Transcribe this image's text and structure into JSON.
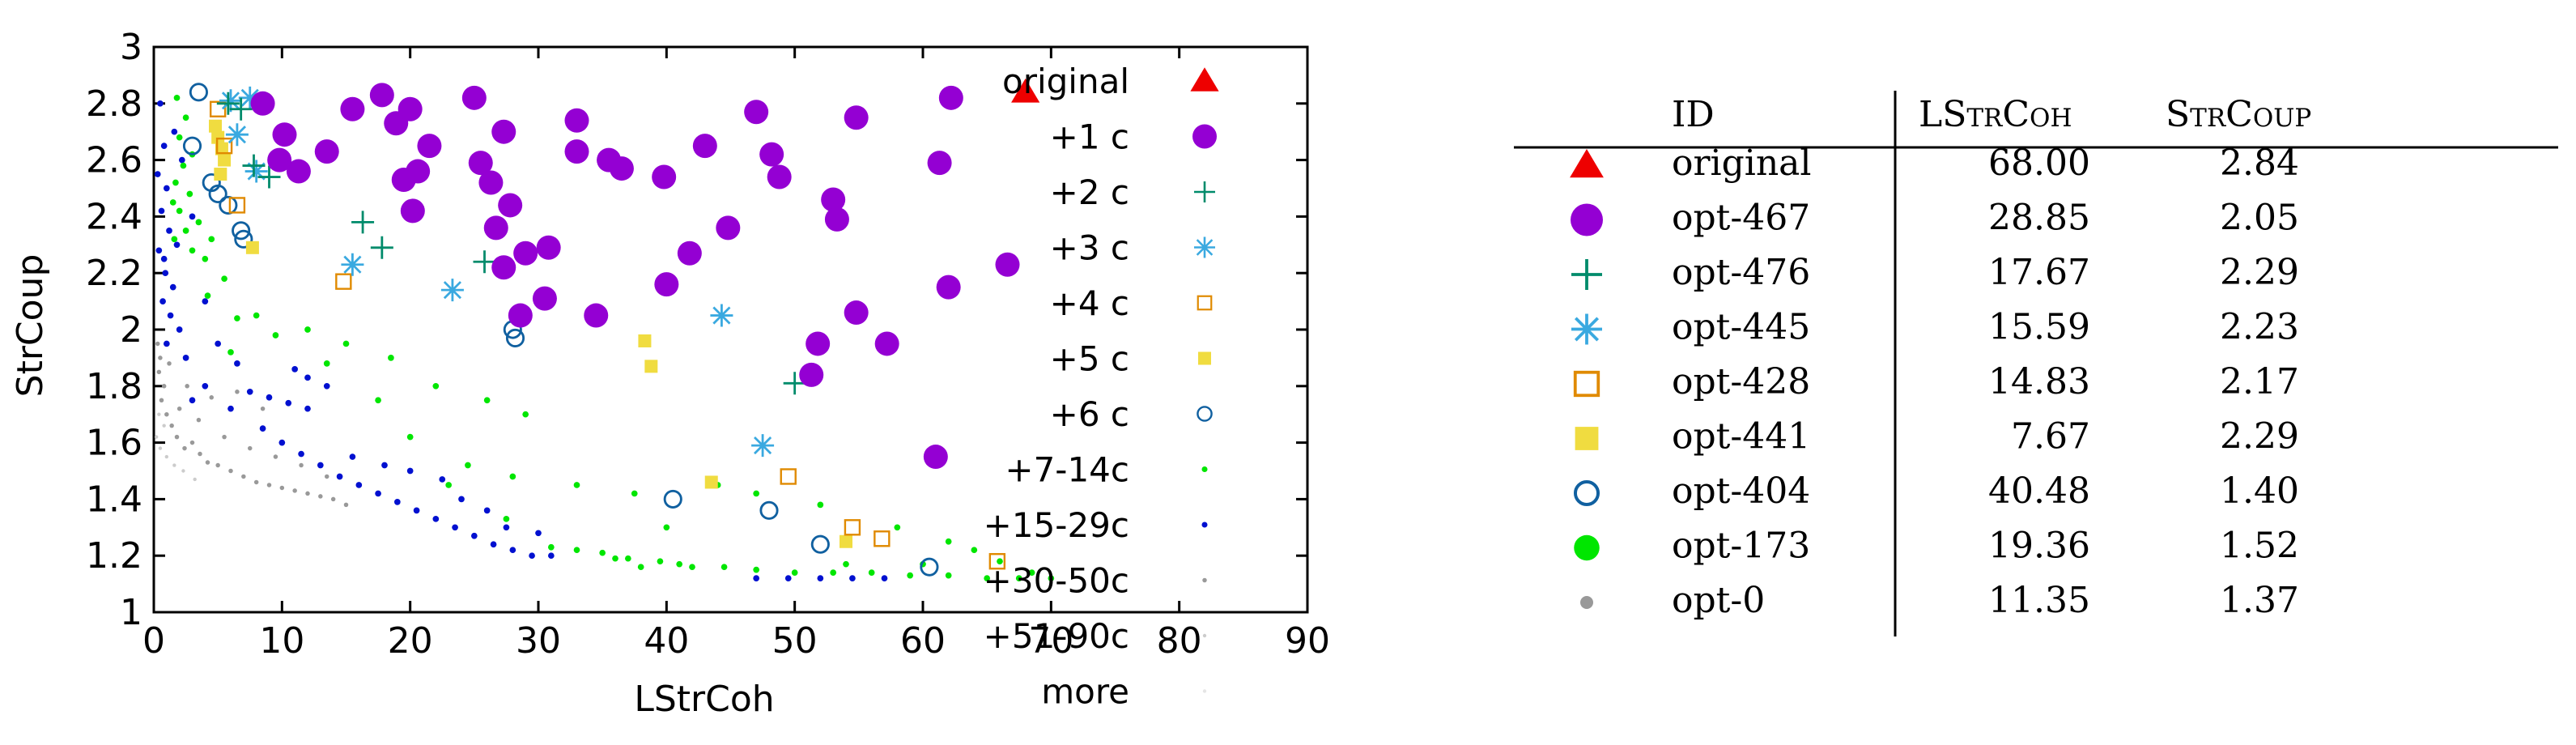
{
  "chart_data": {
    "type": "scatter",
    "title": "",
    "xlabel": "LStrCoh",
    "ylabel": "StrCoup",
    "xlim": [
      0,
      90
    ],
    "ylim": [
      1,
      3
    ],
    "x_ticks": [
      "0",
      "10",
      "20",
      "30",
      "40",
      "50",
      "60",
      "70",
      "80",
      "90"
    ],
    "y_ticks": [
      "1",
      "1.2",
      "1.4",
      "1.6",
      "1.8",
      "2",
      "2.2",
      "2.4",
      "2.6",
      "2.8",
      "3"
    ],
    "grid": false,
    "legend_position": "top-right inside",
    "series": [
      {
        "name": "original",
        "marker": "triangle",
        "color": "#ee0000",
        "points": [
          [
            68.0,
            2.84
          ]
        ]
      },
      {
        "name": "+1 c",
        "marker": "circle-filled",
        "color": "#9400d3",
        "points": [
          [
            8.5,
            2.8
          ],
          [
            10.2,
            2.69
          ],
          [
            9.8,
            2.6
          ],
          [
            11.3,
            2.56
          ],
          [
            13.5,
            2.63
          ],
          [
            15.5,
            2.78
          ],
          [
            17.8,
            2.83
          ],
          [
            18.9,
            2.73
          ],
          [
            20.0,
            2.78
          ],
          [
            21.5,
            2.65
          ],
          [
            19.5,
            2.53
          ],
          [
            20.6,
            2.56
          ],
          [
            20.2,
            2.42
          ],
          [
            25.0,
            2.82
          ],
          [
            25.5,
            2.59
          ],
          [
            26.3,
            2.52
          ],
          [
            27.3,
            2.7
          ],
          [
            27.8,
            2.44
          ],
          [
            26.7,
            2.36
          ],
          [
            27.3,
            2.22
          ],
          [
            29.0,
            2.27
          ],
          [
            30.8,
            2.29
          ],
          [
            30.5,
            2.11
          ],
          [
            28.6,
            2.05
          ],
          [
            33.0,
            2.74
          ],
          [
            33.0,
            2.63
          ],
          [
            35.5,
            2.6
          ],
          [
            36.5,
            2.57
          ],
          [
            39.8,
            2.54
          ],
          [
            43.0,
            2.65
          ],
          [
            41.8,
            2.27
          ],
          [
            40.0,
            2.16
          ],
          [
            44.8,
            2.36
          ],
          [
            47.0,
            2.77
          ],
          [
            48.2,
            2.62
          ],
          [
            48.8,
            2.54
          ],
          [
            53.0,
            2.46
          ],
          [
            53.3,
            2.39
          ],
          [
            54.8,
            2.75
          ],
          [
            54.8,
            2.06
          ],
          [
            51.8,
            1.95
          ],
          [
            51.3,
            1.84
          ],
          [
            57.2,
            1.95
          ],
          [
            62.2,
            2.82
          ],
          [
            61.3,
            2.59
          ],
          [
            62.0,
            2.15
          ],
          [
            66.6,
            2.23
          ],
          [
            61.0,
            1.55
          ],
          [
            34.5,
            2.05
          ]
        ]
      },
      {
        "name": "+2 c",
        "marker": "plus",
        "color": "#008b6b",
        "points": [
          [
            5.8,
            2.8
          ],
          [
            6.8,
            2.78
          ],
          [
            7.8,
            2.58
          ],
          [
            9.0,
            2.54
          ],
          [
            16.3,
            2.38
          ],
          [
            17.8,
            2.29
          ],
          [
            25.8,
            2.24
          ],
          [
            50.0,
            1.81
          ]
        ]
      },
      {
        "name": "+3 c",
        "marker": "asterisk",
        "color": "#3aa9e0",
        "points": [
          [
            6.0,
            2.81
          ],
          [
            6.5,
            2.69
          ],
          [
            7.5,
            2.82
          ],
          [
            8.0,
            2.56
          ],
          [
            15.5,
            2.23
          ],
          [
            23.3,
            2.14
          ],
          [
            44.3,
            2.05
          ],
          [
            47.5,
            1.59
          ]
        ]
      },
      {
        "name": "+4 c",
        "marker": "square-open",
        "color": "#e08a00",
        "points": [
          [
            5.0,
            2.78
          ],
          [
            5.5,
            2.65
          ],
          [
            6.5,
            2.44
          ],
          [
            14.8,
            2.17
          ],
          [
            49.5,
            1.48
          ],
          [
            54.5,
            1.3
          ],
          [
            56.8,
            1.26
          ],
          [
            65.8,
            1.18
          ]
        ]
      },
      {
        "name": "+5 c",
        "marker": "square-filled",
        "color": "#f0dc40",
        "points": [
          [
            4.8,
            2.72
          ],
          [
            5.0,
            2.68
          ],
          [
            5.3,
            2.64
          ],
          [
            5.5,
            2.6
          ],
          [
            5.2,
            2.55
          ],
          [
            7.7,
            2.29
          ],
          [
            38.3,
            1.96
          ],
          [
            38.8,
            1.87
          ],
          [
            43.5,
            1.46
          ],
          [
            54.0,
            1.25
          ]
        ]
      },
      {
        "name": "+6 c",
        "marker": "circle-open",
        "color": "#1060a0",
        "points": [
          [
            3.5,
            2.84
          ],
          [
            3.0,
            2.65
          ],
          [
            4.5,
            2.52
          ],
          [
            5.0,
            2.48
          ],
          [
            5.8,
            2.44
          ],
          [
            6.8,
            2.35
          ],
          [
            7.0,
            2.32
          ],
          [
            28.0,
            2.0
          ],
          [
            28.2,
            1.97
          ],
          [
            40.5,
            1.4
          ],
          [
            48.0,
            1.36
          ],
          [
            52.0,
            1.24
          ],
          [
            60.5,
            1.16
          ]
        ]
      },
      {
        "name": "+7-14c",
        "marker": "dot",
        "color": "#00e600",
        "points": [
          [
            1.8,
            2.82
          ],
          [
            2.5,
            2.75
          ],
          [
            2.0,
            2.68
          ],
          [
            3.0,
            2.62
          ],
          [
            2.3,
            2.58
          ],
          [
            1.7,
            2.52
          ],
          [
            2.8,
            2.48
          ],
          [
            1.5,
            2.45
          ],
          [
            2.0,
            2.42
          ],
          [
            3.5,
            2.38
          ],
          [
            2.5,
            2.35
          ],
          [
            1.6,
            2.32
          ],
          [
            3.0,
            2.28
          ],
          [
            4.5,
            2.32
          ],
          [
            4.0,
            2.25
          ],
          [
            5.5,
            2.18
          ],
          [
            4.2,
            2.12
          ],
          [
            6.5,
            2.04
          ],
          [
            8.0,
            2.05
          ],
          [
            12.0,
            2.0
          ],
          [
            15.0,
            1.95
          ],
          [
            18.5,
            1.9
          ],
          [
            22.0,
            1.8
          ],
          [
            26.0,
            1.75
          ],
          [
            29.0,
            1.7
          ],
          [
            17.5,
            1.75
          ],
          [
            20.0,
            1.62
          ],
          [
            24.5,
            1.52
          ],
          [
            28.0,
            1.48
          ],
          [
            33.0,
            1.45
          ],
          [
            37.5,
            1.42
          ],
          [
            44.0,
            1.45
          ],
          [
            47.0,
            1.42
          ],
          [
            52.0,
            1.38
          ],
          [
            58.0,
            1.3
          ],
          [
            62.0,
            1.25
          ],
          [
            64.0,
            1.22
          ],
          [
            66.0,
            1.18
          ],
          [
            68.5,
            1.14
          ],
          [
            31.0,
            1.23
          ],
          [
            33.0,
            1.22
          ],
          [
            35.0,
            1.21
          ],
          [
            37.0,
            1.19
          ],
          [
            39.5,
            1.18
          ],
          [
            42.0,
            1.16
          ],
          [
            44.5,
            1.16
          ],
          [
            47.0,
            1.15
          ],
          [
            50.0,
            1.14
          ],
          [
            53.0,
            1.14
          ],
          [
            56.0,
            1.14
          ],
          [
            59.0,
            1.13
          ],
          [
            62.0,
            1.13
          ],
          [
            65.0,
            1.12
          ],
          [
            67.5,
            1.12
          ],
          [
            70.0,
            1.12
          ],
          [
            54.0,
            1.17
          ],
          [
            60.0,
            1.17
          ],
          [
            38.0,
            1.16
          ],
          [
            41.0,
            1.17
          ],
          [
            36.0,
            1.19
          ],
          [
            40.0,
            1.3
          ],
          [
            27.5,
            1.33
          ],
          [
            23.0,
            1.45
          ],
          [
            13.5,
            1.88
          ],
          [
            9.5,
            1.98
          ],
          [
            6.0,
            1.92
          ]
        ]
      },
      {
        "name": "+15-29c",
        "marker": "dot",
        "color": "#0010d0",
        "points": [
          [
            0.5,
            2.8
          ],
          [
            0.8,
            2.65
          ],
          [
            0.3,
            2.55
          ],
          [
            1.0,
            2.5
          ],
          [
            0.6,
            2.42
          ],
          [
            1.2,
            2.35
          ],
          [
            0.4,
            2.28
          ],
          [
            0.9,
            2.2
          ],
          [
            1.5,
            2.15
          ],
          [
            0.7,
            2.1
          ],
          [
            1.3,
            2.05
          ],
          [
            2.0,
            2.0
          ],
          [
            1.0,
            1.95
          ],
          [
            2.5,
            1.9
          ],
          [
            0.8,
            2.25
          ],
          [
            1.8,
            2.3
          ],
          [
            2.2,
            2.6
          ],
          [
            1.6,
            2.7
          ],
          [
            3.0,
            2.4
          ],
          [
            4.0,
            2.1
          ],
          [
            5.0,
            1.95
          ],
          [
            6.5,
            1.88
          ],
          [
            7.5,
            1.78
          ],
          [
            9.0,
            1.76
          ],
          [
            10.5,
            1.74
          ],
          [
            12.0,
            1.72
          ],
          [
            8.5,
            1.65
          ],
          [
            10.0,
            1.6
          ],
          [
            11.5,
            1.56
          ],
          [
            13.0,
            1.52
          ],
          [
            14.5,
            1.48
          ],
          [
            16.0,
            1.45
          ],
          [
            17.5,
            1.42
          ],
          [
            19.0,
            1.39
          ],
          [
            20.5,
            1.36
          ],
          [
            22.0,
            1.33
          ],
          [
            23.5,
            1.3
          ],
          [
            25.0,
            1.27
          ],
          [
            26.5,
            1.24
          ],
          [
            28.0,
            1.22
          ],
          [
            29.5,
            1.2
          ],
          [
            31.0,
            1.2
          ],
          [
            15.5,
            1.55
          ],
          [
            18.0,
            1.52
          ],
          [
            20.0,
            1.5
          ],
          [
            22.5,
            1.47
          ],
          [
            24.0,
            1.4
          ],
          [
            26.0,
            1.36
          ],
          [
            27.5,
            1.3
          ],
          [
            30.0,
            1.28
          ],
          [
            13.5,
            1.8
          ],
          [
            12.0,
            1.83
          ],
          [
            11.0,
            1.86
          ],
          [
            4.0,
            1.8
          ],
          [
            3.0,
            1.75
          ],
          [
            6.0,
            1.72
          ],
          [
            47.0,
            1.12
          ],
          [
            49.5,
            1.12
          ],
          [
            52.0,
            1.12
          ],
          [
            54.5,
            1.12
          ],
          [
            57.0,
            1.12
          ]
        ]
      },
      {
        "name": "+30-50c",
        "marker": "dot-small",
        "color": "#999999",
        "points": [
          [
            0.3,
            1.95
          ],
          [
            0.5,
            1.9
          ],
          [
            0.4,
            1.85
          ],
          [
            0.8,
            1.8
          ],
          [
            0.6,
            1.75
          ],
          [
            1.0,
            1.7
          ],
          [
            1.4,
            1.66
          ],
          [
            1.8,
            1.62
          ],
          [
            2.4,
            1.58
          ],
          [
            3.0,
            1.6
          ],
          [
            3.6,
            1.56
          ],
          [
            4.2,
            1.53
          ],
          [
            5.0,
            1.52
          ],
          [
            6.0,
            1.5
          ],
          [
            7.0,
            1.48
          ],
          [
            8.0,
            1.46
          ],
          [
            9.0,
            1.45
          ],
          [
            10.0,
            1.44
          ],
          [
            11.0,
            1.43
          ],
          [
            12.0,
            1.42
          ],
          [
            13.0,
            1.41
          ],
          [
            14.0,
            1.4
          ],
          [
            15.0,
            1.38
          ],
          [
            2.0,
            1.72
          ],
          [
            3.5,
            1.68
          ],
          [
            5.5,
            1.62
          ],
          [
            7.5,
            1.58
          ],
          [
            9.5,
            1.55
          ],
          [
            11.5,
            1.52
          ],
          [
            13.5,
            1.48
          ],
          [
            1.2,
            1.88
          ],
          [
            2.6,
            1.8
          ],
          [
            4.5,
            1.76
          ],
          [
            6.5,
            1.78
          ],
          [
            8.5,
            1.72
          ]
        ]
      },
      {
        "name": "+51-90c",
        "marker": "dot-tiny",
        "color": "#cccccc",
        "points": [
          [
            0.2,
            1.62
          ],
          [
            0.5,
            1.58
          ],
          [
            1.0,
            1.55
          ],
          [
            1.6,
            1.52
          ],
          [
            2.3,
            1.5
          ],
          [
            3.2,
            1.47
          ],
          [
            0.4,
            1.7
          ],
          [
            0.8,
            1.66
          ]
        ]
      },
      {
        "name": "more",
        "marker": "dot-tiny",
        "color": "#e5e5e5",
        "points": []
      }
    ]
  },
  "table": {
    "columns": [
      "ID",
      "LStrCoh",
      "StrCoup"
    ],
    "rows": [
      {
        "marker": "triangle",
        "color": "#ee0000",
        "id": "original",
        "lstrcoh": "68.00",
        "strcoup": "2.84"
      },
      {
        "marker": "circle-filled",
        "color": "#9400d3",
        "id": "opt-467",
        "lstrcoh": "28.85",
        "strcoup": "2.05"
      },
      {
        "marker": "plus",
        "color": "#008b6b",
        "id": "opt-476",
        "lstrcoh": "17.67",
        "strcoup": "2.29"
      },
      {
        "marker": "asterisk",
        "color": "#3aa9e0",
        "id": "opt-445",
        "lstrcoh": "15.59",
        "strcoup": "2.23"
      },
      {
        "marker": "square-open",
        "color": "#e08a00",
        "id": "opt-428",
        "lstrcoh": "14.83",
        "strcoup": "2.17"
      },
      {
        "marker": "square-filled",
        "color": "#f0dc40",
        "id": "opt-441",
        "lstrcoh": "7.67",
        "strcoup": "2.29"
      },
      {
        "marker": "circle-open",
        "color": "#1060a0",
        "id": "opt-404",
        "lstrcoh": "40.48",
        "strcoup": "1.40"
      },
      {
        "marker": "circle-filled-medium",
        "color": "#00e600",
        "id": "opt-173",
        "lstrcoh": "19.36",
        "strcoup": "1.52"
      },
      {
        "marker": "dot",
        "color": "#999999",
        "id": "opt-0",
        "lstrcoh": "11.35",
        "strcoup": "1.37"
      }
    ]
  }
}
